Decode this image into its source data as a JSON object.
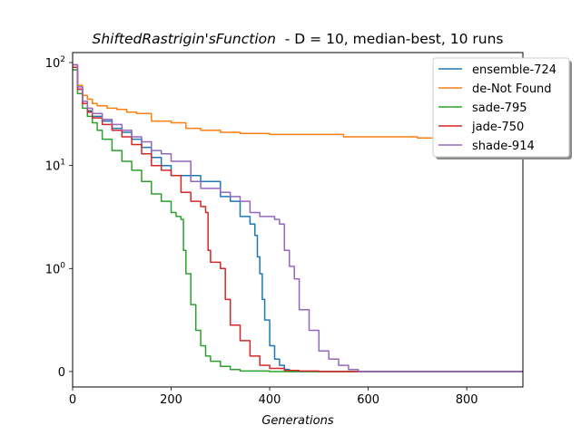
{
  "chart_data": {
    "type": "line",
    "title_italic": "ShiftedRastrigin'sFunction",
    "title_rest": "  - D = 10, median-best, 10 runs",
    "xlabel": "Generations",
    "ylabel": "",
    "xlim": [
      0,
      914
    ],
    "y_scale": "symlog",
    "x_ticks": [
      0,
      200,
      400,
      600,
      800
    ],
    "x_tick_labels": [
      "0",
      "200",
      "400",
      "600",
      "800"
    ],
    "y_ticks": [
      0,
      1,
      10,
      100
    ],
    "y_tick_labels": [
      {
        "base": "0",
        "exp": ""
      },
      {
        "base": "10",
        "exp": "0"
      },
      {
        "base": "10",
        "exp": "1"
      },
      {
        "base": "10",
        "exp": "2"
      }
    ],
    "legend_position": "top-right",
    "grid": false,
    "series": [
      {
        "name": "ensemble-724",
        "color": "#1f77b4",
        "x": [
          0,
          10,
          20,
          30,
          40,
          60,
          80,
          100,
          120,
          140,
          160,
          180,
          200,
          240,
          260,
          300,
          320,
          340,
          360,
          370,
          375,
          380,
          385,
          390,
          400,
          410,
          420,
          430,
          440,
          914
        ],
        "y": [
          90,
          55,
          40,
          34,
          30,
          27,
          23,
          21,
          18,
          15,
          12,
          10,
          8,
          8,
          7,
          5,
          4.5,
          3.2,
          2.7,
          2.1,
          1.3,
          0.95,
          0.7,
          0.5,
          0.25,
          0.12,
          0.06,
          0.02,
          0,
          0
        ]
      },
      {
        "name": "de-Not Found",
        "color": "#ff7f0e",
        "x": [
          0,
          10,
          20,
          30,
          40,
          50,
          70,
          90,
          110,
          130,
          160,
          200,
          230,
          260,
          300,
          340,
          400,
          450,
          500,
          550,
          600,
          700,
          800,
          860,
          914
        ],
        "y": [
          95,
          60,
          48,
          44,
          40,
          38,
          36,
          35,
          33,
          32,
          27,
          26,
          23,
          22,
          21,
          20.5,
          20,
          20,
          20,
          19,
          19,
          18.5,
          18,
          14.5,
          14.5
        ]
      },
      {
        "name": "sade-795",
        "color": "#2ca02c",
        "x": [
          0,
          10,
          20,
          30,
          40,
          50,
          60,
          80,
          100,
          120,
          140,
          160,
          180,
          200,
          210,
          220,
          225,
          230,
          240,
          250,
          260,
          270,
          280,
          300,
          320,
          340,
          400,
          914
        ],
        "y": [
          85,
          50,
          36,
          30,
          26,
          22,
          18,
          14,
          11,
          9,
          7,
          5.3,
          4.5,
          3.5,
          3.2,
          3,
          1.5,
          0.95,
          0.65,
          0.4,
          0.25,
          0.15,
          0.1,
          0.05,
          0.02,
          0.005,
          0,
          0
        ]
      },
      {
        "name": "jade-750",
        "color": "#d62728",
        "x": [
          0,
          10,
          20,
          30,
          40,
          60,
          80,
          100,
          120,
          140,
          160,
          180,
          200,
          220,
          240,
          260,
          270,
          275,
          280,
          300,
          310,
          320,
          340,
          360,
          380,
          400,
          430,
          460,
          500,
          914
        ],
        "y": [
          90,
          55,
          40,
          33,
          29,
          25,
          22,
          19,
          16,
          13,
          10,
          9,
          8,
          5.5,
          4.5,
          4,
          3.5,
          1.5,
          1.15,
          1,
          0.7,
          0.45,
          0.3,
          0.15,
          0.06,
          0.03,
          0.01,
          0.005,
          0,
          0
        ]
      },
      {
        "name": "shade-914",
        "color": "#9467bd",
        "x": [
          0,
          10,
          20,
          30,
          40,
          60,
          80,
          100,
          120,
          140,
          160,
          180,
          200,
          240,
          260,
          280,
          300,
          320,
          340,
          360,
          380,
          410,
          420,
          430,
          440,
          450,
          460,
          480,
          500,
          520,
          540,
          560,
          580,
          914
        ],
        "y": [
          95,
          58,
          42,
          36,
          32,
          28,
          25,
          22,
          19,
          17,
          14,
          13,
          11,
          7,
          6,
          6,
          5.5,
          5,
          4.5,
          3.5,
          3.2,
          3,
          2.7,
          1.5,
          1.05,
          0.9,
          0.6,
          0.4,
          0.2,
          0.12,
          0.06,
          0.02,
          0,
          0
        ]
      }
    ]
  }
}
